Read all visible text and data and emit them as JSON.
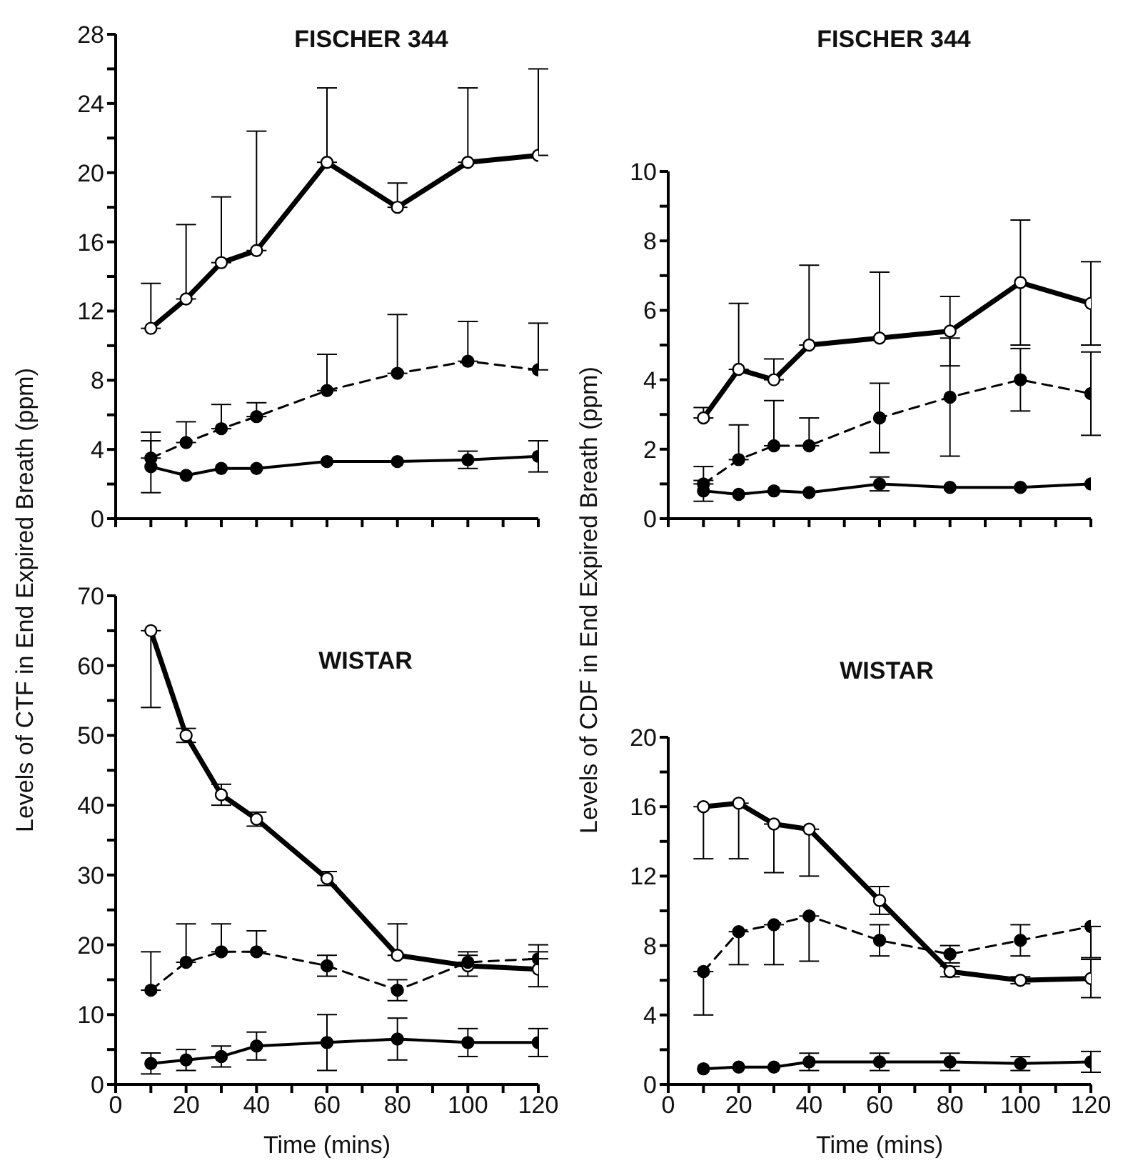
{
  "chart_data": [
    {
      "type": "line",
      "title": "FISCHER 344",
      "x": [
        10,
        20,
        30,
        40,
        60,
        80,
        100,
        120
      ],
      "xlim": [
        0,
        120
      ],
      "xticks": [
        0,
        {
          "value": 10,
          "label": null
        },
        20,
        {
          "value": 30,
          "label": null
        },
        40,
        {
          "value": 50,
          "label": null
        },
        60,
        {
          "value": 70,
          "label": null
        },
        80,
        {
          "value": 90,
          "label": null
        },
        100,
        {
          "value": 110,
          "label": null
        },
        120
      ],
      "ylim": [
        0,
        28
      ],
      "yticks": [
        0,
        {
          "value": 2,
          "label": null
        },
        4,
        {
          "value": 6,
          "label": null
        },
        8,
        {
          "value": 10,
          "label": null
        },
        12,
        {
          "value": 14,
          "label": null
        },
        16,
        {
          "value": 18,
          "label": null
        },
        20,
        {
          "value": 22,
          "label": null
        },
        24,
        {
          "value": 26,
          "label": null
        },
        28
      ],
      "tick_labels": "y",
      "marker": "circle",
      "series": [
        {
          "color": "#000000",
          "line_style": "solid",
          "values": [
            11.0,
            12.7,
            14.8,
            15.5,
            20.6,
            18.0,
            20.6,
            21.0
          ],
          "errors": [
            [
              11.0,
              13.6
            ],
            [
              12.7,
              17.0
            ],
            [
              14.8,
              18.6
            ],
            [
              15.5,
              22.4
            ],
            [
              20.6,
              24.9
            ],
            [
              18.0,
              19.4
            ],
            [
              20.6,
              24.9
            ],
            [
              21.0,
              26.0
            ]
          ]
        },
        {
          "color": "#000000",
          "line_style": "dashed",
          "values": [
            3.5,
            4.4,
            5.2,
            5.9,
            7.4,
            8.4,
            9.1,
            8.6
          ],
          "errors": [
            [
              3.5,
              5.0
            ],
            [
              4.4,
              5.6
            ],
            [
              5.2,
              6.6
            ],
            [
              5.9,
              6.7
            ],
            [
              7.4,
              9.5
            ],
            [
              8.4,
              11.8
            ],
            [
              9.1,
              11.4
            ],
            [
              8.6,
              11.3
            ]
          ]
        },
        {
          "color": "#000000",
          "line_style": "solid",
          "values": [
            3.0,
            2.5,
            2.9,
            2.9,
            3.3,
            3.3,
            3.4,
            3.6
          ],
          "errors": [
            1.5,
            null,
            null,
            null,
            null,
            null,
            0.5,
            0.9
          ]
        }
      ]
    },
    {
      "type": "line",
      "title": "FISCHER 344",
      "x": [
        10,
        20,
        30,
        40,
        60,
        80,
        100,
        120
      ],
      "xlim": [
        0,
        120
      ],
      "xticks": [
        0,
        {
          "value": 10,
          "label": null
        },
        20,
        {
          "value": 30,
          "label": null
        },
        40,
        {
          "value": 50,
          "label": null
        },
        60,
        {
          "value": 70,
          "label": null
        },
        80,
        {
          "value": 90,
          "label": null
        },
        100,
        {
          "value": 110,
          "label": null
        },
        120
      ],
      "ylim": [
        0,
        10
      ],
      "yticks": [
        0,
        {
          "value": 1,
          "label": null
        },
        2,
        {
          "value": 3,
          "label": null
        },
        4,
        {
          "value": 5,
          "label": null
        },
        6,
        {
          "value": 7,
          "label": null
        },
        8,
        {
          "value": 9,
          "label": null
        },
        10
      ],
      "tick_labels": "y",
      "marker": "circle",
      "series": [
        {
          "color": "#000000",
          "line_style": "solid",
          "values": [
            2.9,
            4.3,
            4.0,
            5.0,
            5.2,
            5.4,
            6.8,
            6.2
          ],
          "errors": [
            [
              2.9,
              3.2
            ],
            [
              4.3,
              6.2
            ],
            [
              4.0,
              4.6
            ],
            [
              5.0,
              7.3
            ],
            [
              5.2,
              7.1
            ],
            1.0,
            1.8,
            1.2
          ]
        },
        {
          "color": "#000000",
          "line_style": "dashed",
          "values": [
            1.0,
            1.7,
            2.1,
            2.1,
            2.9,
            3.5,
            4.0,
            3.6
          ],
          "errors": [
            [
              1.0,
              1.5
            ],
            [
              1.7,
              2.7
            ],
            [
              2.1,
              3.4
            ],
            [
              2.1,
              2.9
            ],
            1.0,
            1.7,
            0.9,
            1.2
          ]
        },
        {
          "color": "#000000",
          "line_style": "solid",
          "values": [
            0.8,
            0.7,
            0.8,
            0.75,
            1.0,
            0.9,
            0.9,
            1.0
          ],
          "errors": [
            0.3,
            null,
            null,
            null,
            0.2,
            null,
            null,
            null
          ]
        }
      ]
    },
    {
      "type": "line",
      "title": "WISTAR",
      "xlabel": "Time (mins)",
      "ylabel": "Levels of CTF in End Expired Breath (ppm)",
      "x": [
        10,
        20,
        30,
        40,
        60,
        80,
        100,
        120
      ],
      "xlim": [
        0,
        120
      ],
      "xticks": [
        0,
        {
          "value": 10,
          "label": null
        },
        20,
        {
          "value": 30,
          "label": null
        },
        40,
        {
          "value": 50,
          "label": null
        },
        60,
        {
          "value": 70,
          "label": null
        },
        80,
        {
          "value": 90,
          "label": null
        },
        100,
        {
          "value": 110,
          "label": null
        },
        120
      ],
      "ylim": [
        0,
        70
      ],
      "yticks": [
        0,
        {
          "value": 5,
          "label": null
        },
        10,
        {
          "value": 15,
          "label": null
        },
        20,
        {
          "value": 25,
          "label": null
        },
        30,
        {
          "value": 35,
          "label": null
        },
        40,
        {
          "value": 45,
          "label": null
        },
        50,
        {
          "value": 55,
          "label": null
        },
        60,
        {
          "value": 65,
          "label": null
        },
        70
      ],
      "marker": "circle",
      "series": [
        {
          "color": "#000000",
          "line_style": "solid",
          "values": [
            65,
            50,
            41.5,
            38,
            29.5,
            18.5,
            17,
            16.5
          ],
          "errors": [
            [
              54,
              65
            ],
            1,
            1.5,
            1,
            1,
            [
              18.5,
              23
            ],
            1.5,
            2.5
          ]
        },
        {
          "color": "#000000",
          "line_style": "dashed",
          "values": [
            13.5,
            17.5,
            19,
            19,
            17,
            13.5,
            17.5,
            18
          ],
          "errors": [
            [
              13.5,
              19
            ],
            [
              17.5,
              23
            ],
            [
              19,
              23
            ],
            [
              19,
              22
            ],
            1.5,
            1.5,
            [
              17.5,
              19
            ],
            [
              18,
              20
            ]
          ]
        },
        {
          "color": "#000000",
          "line_style": "solid",
          "values": [
            3,
            3.5,
            4,
            5.5,
            6,
            6.5,
            6,
            6
          ],
          "errors": [
            1.5,
            1.5,
            1.5,
            2,
            4,
            3,
            2,
            2
          ]
        }
      ]
    },
    {
      "type": "line",
      "title": "WISTAR",
      "xlabel": "Time (mins)",
      "ylabel": "Levels of CDF in End Expired Breath (ppm)",
      "x": [
        10,
        20,
        30,
        40,
        60,
        80,
        100,
        120
      ],
      "xlim": [
        0,
        120
      ],
      "xticks": [
        0,
        {
          "value": 10,
          "label": null
        },
        20,
        {
          "value": 30,
          "label": null
        },
        40,
        {
          "value": 50,
          "label": null
        },
        60,
        {
          "value": 70,
          "label": null
        },
        80,
        {
          "value": 90,
          "label": null
        },
        100,
        {
          "value": 110,
          "label": null
        },
        120
      ],
      "ylim": [
        0,
        20
      ],
      "yticks": [
        0,
        {
          "value": 2,
          "label": null
        },
        4,
        {
          "value": 6,
          "label": null
        },
        8,
        {
          "value": 10,
          "label": null
        },
        12,
        {
          "value": 14,
          "label": null
        },
        16,
        {
          "value": 18,
          "label": null
        },
        20
      ],
      "marker": "circle",
      "series": [
        {
          "color": "#000000",
          "line_style": "solid",
          "values": [
            16,
            16.2,
            15,
            14.7,
            10.6,
            6.5,
            6,
            6.1
          ],
          "errors": [
            [
              13,
              16
            ],
            [
              13,
              16.2
            ],
            [
              12.2,
              15
            ],
            [
              12,
              14.7
            ],
            0.8,
            0.3,
            0.2,
            1.1
          ]
        },
        {
          "color": "#000000",
          "line_style": "dashed",
          "values": [
            6.5,
            8.8,
            9.2,
            9.7,
            8.3,
            7.5,
            8.3,
            9.1
          ],
          "errors": [
            [
              4,
              6.5
            ],
            [
              6.9,
              8.8
            ],
            [
              6.9,
              9.2
            ],
            [
              7.1,
              9.7
            ],
            0.9,
            0.5,
            0.9,
            [
              7.3,
              9.1
            ]
          ]
        },
        {
          "color": "#000000",
          "line_style": "solid",
          "values": [
            0.9,
            1.0,
            1.0,
            1.3,
            1.3,
            1.3,
            1.2,
            1.3
          ],
          "errors": [
            null,
            null,
            null,
            0.5,
            0.5,
            0.5,
            0.4,
            0.6
          ]
        }
      ]
    }
  ]
}
